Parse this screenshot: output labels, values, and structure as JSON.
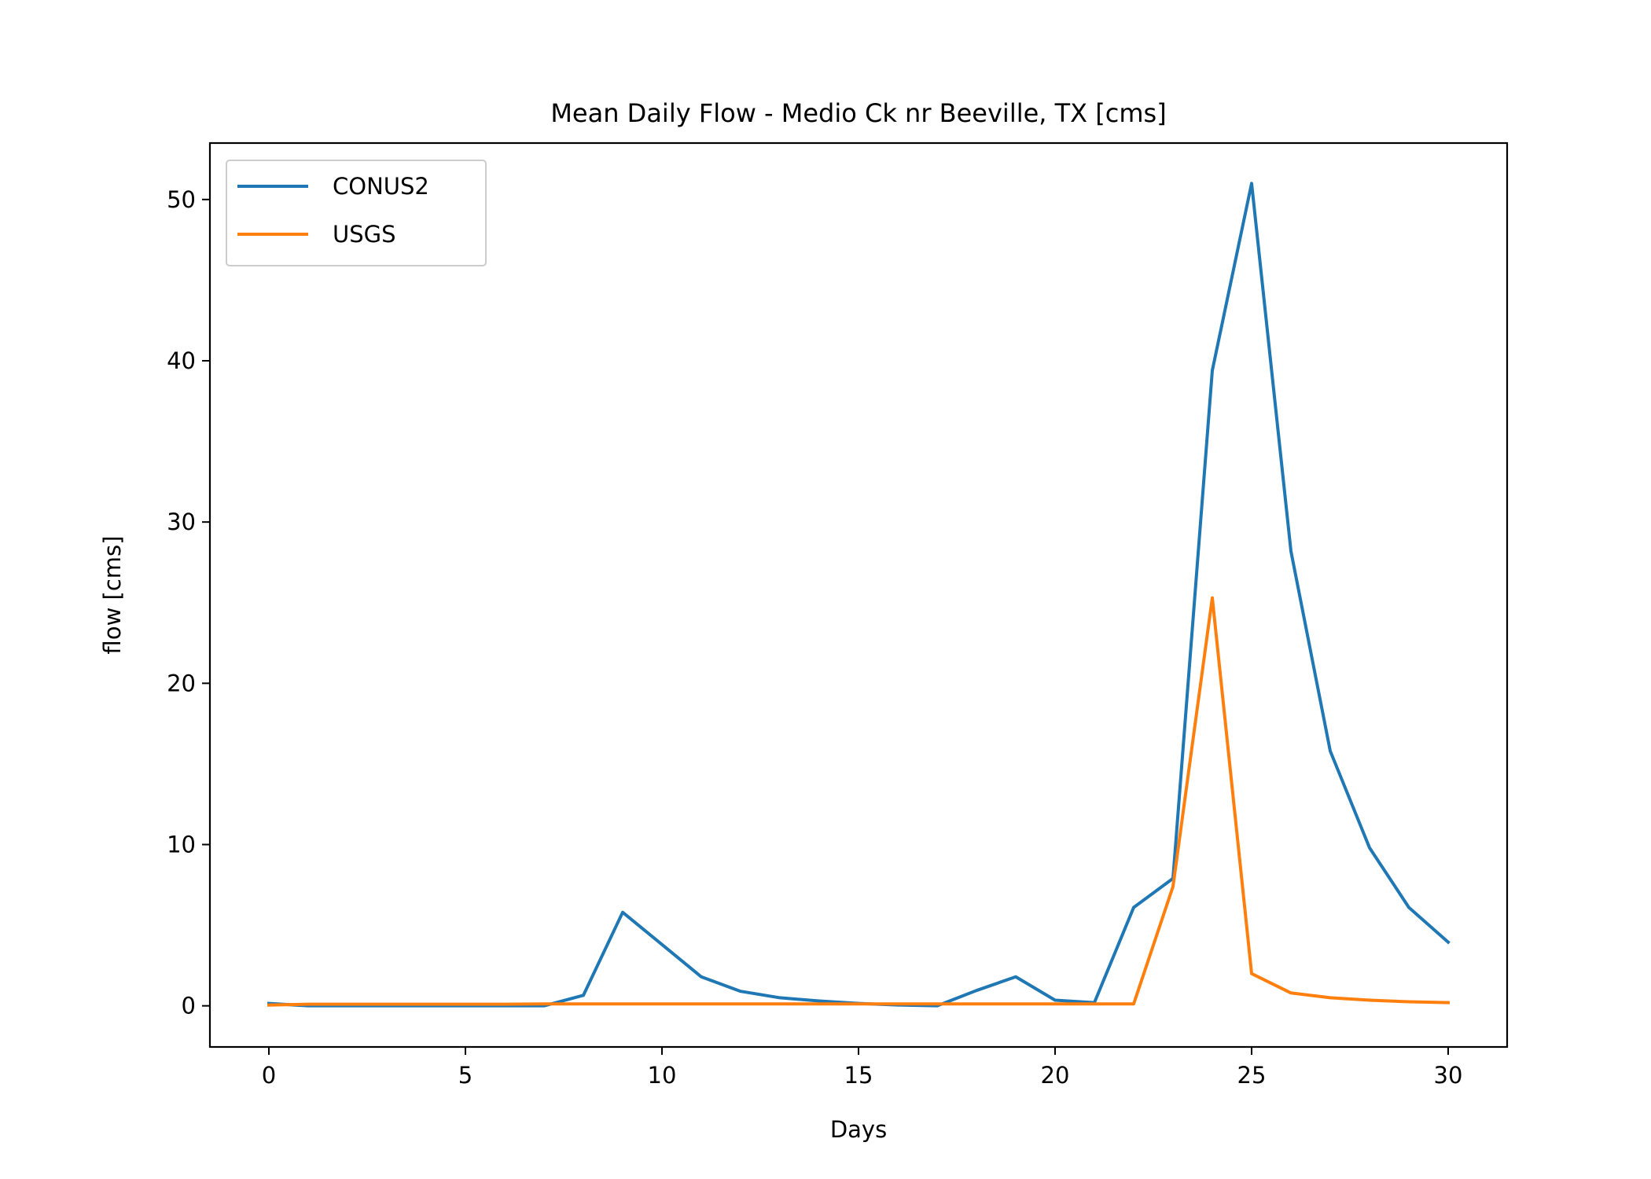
{
  "chart_data": {
    "type": "line",
    "title": "Mean Daily Flow - Medio Ck nr Beeville, TX [cms]",
    "xlabel": "Days",
    "ylabel": "flow [cms]",
    "xlim": [
      -1.5,
      31.5
    ],
    "ylim": [
      -2.55,
      53.5
    ],
    "xticks": [
      0,
      5,
      10,
      15,
      20,
      25,
      30
    ],
    "yticks": [
      0,
      10,
      20,
      30,
      40,
      50
    ],
    "grid": false,
    "legend_position": "upper-left",
    "x": [
      0,
      1,
      2,
      3,
      4,
      5,
      6,
      7,
      8,
      9,
      10,
      11,
      12,
      13,
      14,
      15,
      16,
      17,
      18,
      19,
      20,
      21,
      22,
      23,
      24,
      25,
      26,
      27,
      28,
      29,
      30
    ],
    "series": [
      {
        "name": "CONUS2",
        "color": "#1f77b4",
        "values": [
          0.15,
          0.0,
          0.0,
          0.0,
          0.0,
          0.0,
          0.0,
          0.0,
          0.65,
          5.8,
          3.8,
          1.8,
          0.9,
          0.5,
          0.3,
          0.15,
          0.05,
          0.0,
          0.95,
          1.8,
          0.35,
          0.2,
          6.1,
          7.9,
          39.4,
          51.0,
          28.2,
          15.8,
          9.8,
          6.1,
          3.95
        ]
      },
      {
        "name": "USGS",
        "color": "#ff7f0e",
        "values": [
          0.05,
          0.1,
          0.1,
          0.1,
          0.1,
          0.1,
          0.1,
          0.12,
          0.12,
          0.12,
          0.12,
          0.12,
          0.12,
          0.12,
          0.12,
          0.12,
          0.12,
          0.12,
          0.12,
          0.12,
          0.12,
          0.12,
          0.12,
          7.4,
          25.3,
          2.0,
          0.8,
          0.5,
          0.35,
          0.25,
          0.2
        ]
      }
    ]
  }
}
